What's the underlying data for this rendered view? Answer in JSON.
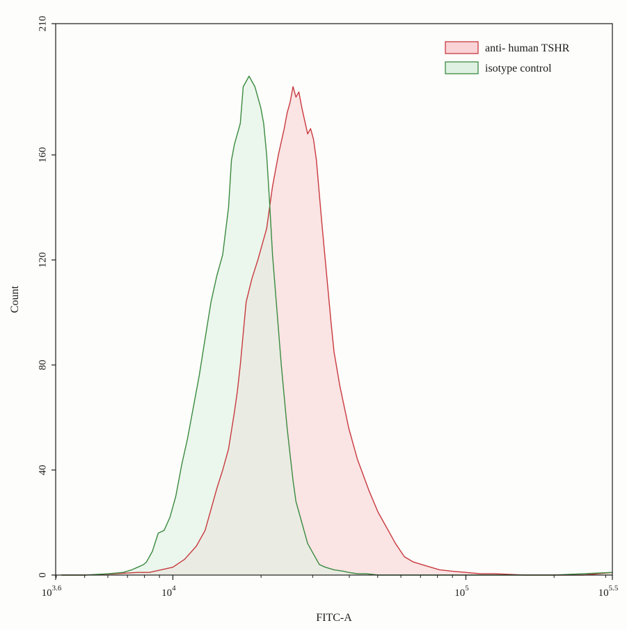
{
  "chart_data": {
    "type": "area",
    "xscale": "log10",
    "xlabel": "FITC-A",
    "ylabel": "Count",
    "xlim": [
      3.6,
      5.5
    ],
    "ylim": [
      0,
      210
    ],
    "grid": false,
    "legend_position": "top-right",
    "x_ticks": [
      {
        "exp": 3.6,
        "base": "10",
        "sup": "3.6"
      },
      {
        "exp": 4,
        "base": "10",
        "sup": "4"
      },
      {
        "exp": 5,
        "base": "10",
        "sup": "5"
      },
      {
        "exp": 5.5,
        "base": "10",
        "sup": "5.5"
      }
    ],
    "y_ticks": [
      0,
      40,
      80,
      120,
      160,
      210
    ],
    "series": [
      {
        "name": "anti- human TSHR",
        "stroke": "#c8383d",
        "fill": "#f9d3d6",
        "x": [
          3.62,
          3.7,
          3.8,
          3.88,
          3.92,
          3.96,
          4.0,
          4.04,
          4.08,
          4.11,
          4.13,
          4.15,
          4.17,
          4.19,
          4.2,
          4.21,
          4.22,
          4.23,
          4.24,
          4.25,
          4.27,
          4.29,
          4.32,
          4.34,
          4.36,
          4.38,
          4.39,
          4.4,
          4.41,
          4.42,
          4.43,
          4.44,
          4.45,
          4.46,
          4.47,
          4.48,
          4.49,
          4.5,
          4.51,
          4.52,
          4.53,
          4.54,
          4.55,
          4.57,
          4.6,
          4.63,
          4.67,
          4.7,
          4.73,
          4.76,
          4.79,
          4.82,
          4.85,
          4.88,
          4.91,
          4.95,
          5.0,
          5.05,
          5.1,
          5.2,
          5.3,
          5.4,
          5.5
        ],
        "y": [
          0,
          0,
          0.5,
          1,
          1,
          2,
          3,
          6,
          11,
          17,
          25,
          33,
          40,
          48,
          55,
          62,
          70,
          80,
          92,
          104,
          113,
          120,
          132,
          148,
          160,
          170,
          176,
          180,
          186,
          182,
          184,
          178,
          173,
          168,
          170,
          166,
          158,
          145,
          132,
          120,
          108,
          96,
          85,
          72,
          56,
          44,
          32,
          24,
          18,
          12,
          7,
          5,
          4,
          3,
          2,
          1.5,
          1,
          0.5,
          0.5,
          0,
          0,
          0,
          1
        ]
      },
      {
        "name": "isotype control",
        "stroke": "#3a8a3f",
        "fill": "#dff1e2",
        "x": [
          3.62,
          3.7,
          3.78,
          3.83,
          3.86,
          3.88,
          3.9,
          3.91,
          3.93,
          3.95,
          3.97,
          3.99,
          4.01,
          4.03,
          4.05,
          4.07,
          4.09,
          4.11,
          4.13,
          4.15,
          4.17,
          4.19,
          4.2,
          4.21,
          4.22,
          4.23,
          4.24,
          4.25,
          4.26,
          4.27,
          4.28,
          4.29,
          4.3,
          4.31,
          4.32,
          4.33,
          4.34,
          4.35,
          4.36,
          4.37,
          4.38,
          4.39,
          4.4,
          4.41,
          4.42,
          4.44,
          4.46,
          4.48,
          4.5,
          4.52,
          4.55,
          4.58,
          4.6,
          4.63,
          4.66,
          4.7,
          4.75,
          4.8,
          4.9,
          5.0,
          5.1,
          5.2,
          5.3,
          5.5
        ],
        "y": [
          0,
          0,
          0.5,
          1,
          2,
          3,
          4,
          5,
          9,
          16,
          17,
          22,
          30,
          42,
          52,
          64,
          76,
          90,
          104,
          114,
          122,
          140,
          158,
          164,
          168,
          172,
          186,
          188,
          190,
          188,
          186,
          182,
          178,
          172,
          160,
          142,
          122,
          108,
          94,
          80,
          68,
          56,
          46,
          36,
          28,
          20,
          12,
          8,
          4,
          3,
          2,
          1.5,
          1,
          0.5,
          0.5,
          0,
          0,
          0,
          0,
          0,
          0,
          0,
          0,
          1
        ]
      }
    ]
  }
}
